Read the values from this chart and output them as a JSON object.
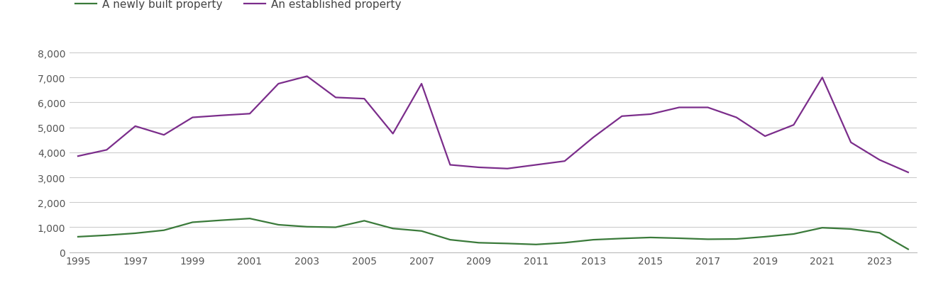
{
  "years": [
    1995,
    1996,
    1997,
    1998,
    1999,
    2000,
    2001,
    2002,
    2003,
    2004,
    2005,
    2006,
    2007,
    2008,
    2009,
    2010,
    2011,
    2012,
    2013,
    2014,
    2015,
    2016,
    2017,
    2018,
    2019,
    2020,
    2021,
    2022,
    2023,
    2024
  ],
  "newly_built": [
    620,
    680,
    760,
    880,
    1200,
    1280,
    1350,
    1100,
    1020,
    1000,
    1260,
    950,
    850,
    500,
    380,
    350,
    310,
    380,
    500,
    550,
    590,
    560,
    520,
    530,
    620,
    730,
    980,
    930,
    780,
    120
  ],
  "established": [
    3850,
    4100,
    5050,
    4700,
    5400,
    5480,
    5550,
    6750,
    7050,
    6200,
    6150,
    4750,
    6750,
    3500,
    3400,
    3350,
    3500,
    3650,
    4600,
    5450,
    5530,
    5800,
    5800,
    5400,
    4650,
    5100,
    7000,
    4400,
    3700,
    3200
  ],
  "newly_built_color": "#3a7a3a",
  "established_color": "#7b2d8b",
  "legend_label_new": "A newly built property",
  "legend_label_est": "An established property",
  "ylim": [
    0,
    8500
  ],
  "yticks": [
    0,
    1000,
    2000,
    3000,
    4000,
    5000,
    6000,
    7000,
    8000
  ],
  "ytick_labels": [
    "0",
    "1,000",
    "2,000",
    "3,000",
    "4,000",
    "5,000",
    "6,000",
    "7,000",
    "8,000"
  ],
  "xtick_years": [
    1995,
    1997,
    1999,
    2001,
    2003,
    2005,
    2007,
    2009,
    2011,
    2013,
    2015,
    2017,
    2019,
    2021,
    2023
  ],
  "background_color": "#ffffff",
  "grid_color": "#cccccc",
  "line_width": 1.6,
  "tick_fontsize": 10,
  "legend_fontsize": 11
}
